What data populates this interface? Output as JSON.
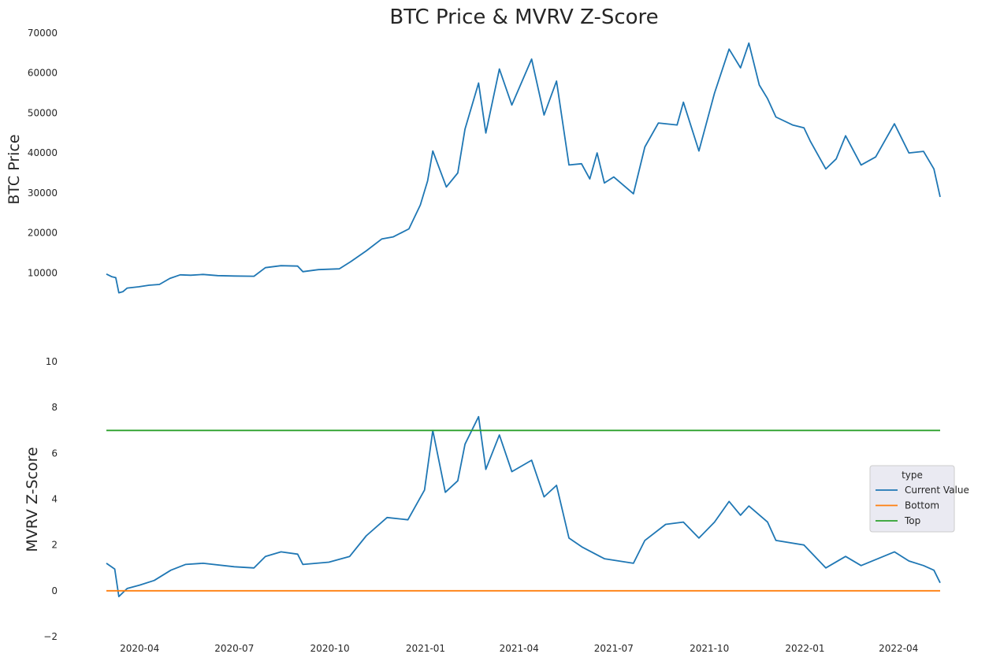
{
  "chart_data": {
    "title": "BTC Price & MVRV Z-Score",
    "panels": [
      {
        "type": "line",
        "ylabel": "BTC  Price",
        "ylim": [
          0,
          70000
        ],
        "yticks": [
          10000,
          20000,
          30000,
          40000,
          50000,
          60000,
          70000
        ],
        "grid": false,
        "series": [
          {
            "color": "#1f77b4",
            "points": [
              [
                "2020-02-29",
                9700
              ],
              [
                "2020-03-05",
                9050
              ],
              [
                "2020-03-09",
                8800
              ],
              [
                "2020-03-12",
                5000
              ],
              [
                "2020-03-16",
                5300
              ],
              [
                "2020-03-20",
                6200
              ],
              [
                "2020-03-31",
                6500
              ],
              [
                "2020-04-10",
                6900
              ],
              [
                "2020-04-20",
                7100
              ],
              [
                "2020-04-30",
                8600
              ],
              [
                "2020-05-10",
                9500
              ],
              [
                "2020-05-20",
                9400
              ],
              [
                "2020-06-01",
                9600
              ],
              [
                "2020-06-15",
                9300
              ],
              [
                "2020-07-01",
                9200
              ],
              [
                "2020-07-20",
                9150
              ],
              [
                "2020-07-31",
                11300
              ],
              [
                "2020-08-15",
                11800
              ],
              [
                "2020-08-31",
                11700
              ],
              [
                "2020-09-05",
                10300
              ],
              [
                "2020-09-20",
                10800
              ],
              [
                "2020-10-10",
                11000
              ],
              [
                "2020-10-21",
                12800
              ],
              [
                "2020-11-05",
                15500
              ],
              [
                "2020-11-20",
                18500
              ],
              [
                "2020-12-01",
                19000
              ],
              [
                "2020-12-16",
                21000
              ],
              [
                "2020-12-27",
                27000
              ],
              [
                "2021-01-03",
                33000
              ],
              [
                "2021-01-08",
                40500
              ],
              [
                "2021-01-21",
                31500
              ],
              [
                "2021-02-01",
                35000
              ],
              [
                "2021-02-08",
                46000
              ],
              [
                "2021-02-21",
                57500
              ],
              [
                "2021-02-28",
                45000
              ],
              [
                "2021-03-13",
                61000
              ],
              [
                "2021-03-25",
                52000
              ],
              [
                "2021-04-13",
                63500
              ],
              [
                "2021-04-25",
                49500
              ],
              [
                "2021-05-07",
                58000
              ],
              [
                "2021-05-19",
                37000
              ],
              [
                "2021-05-31",
                37300
              ],
              [
                "2021-06-08",
                33500
              ],
              [
                "2021-06-15",
                40000
              ],
              [
                "2021-06-22",
                32500
              ],
              [
                "2021-07-01",
                34000
              ],
              [
                "2021-07-20",
                29800
              ],
              [
                "2021-07-31",
                41500
              ],
              [
                "2021-08-13",
                47500
              ],
              [
                "2021-08-31",
                47000
              ],
              [
                "2021-09-06",
                52700
              ],
              [
                "2021-09-21",
                40500
              ],
              [
                "2021-10-06",
                55000
              ],
              [
                "2021-10-20",
                66000
              ],
              [
                "2021-10-31",
                61300
              ],
              [
                "2021-11-08",
                67500
              ],
              [
                "2021-11-18",
                57000
              ],
              [
                "2021-11-26",
                53600
              ],
              [
                "2021-12-04",
                49000
              ],
              [
                "2021-12-20",
                47000
              ],
              [
                "2021-12-31",
                46300
              ],
              [
                "2022-01-06",
                43000
              ],
              [
                "2022-01-21",
                36000
              ],
              [
                "2022-01-31",
                38500
              ],
              [
                "2022-02-09",
                44300
              ],
              [
                "2022-02-24",
                37000
              ],
              [
                "2022-03-10",
                39000
              ],
              [
                "2022-03-28",
                47300
              ],
              [
                "2022-04-11",
                40000
              ],
              [
                "2022-04-25",
                40400
              ],
              [
                "2022-05-05",
                36000
              ],
              [
                "2022-05-11",
                29000
              ]
            ]
          }
        ]
      },
      {
        "type": "line",
        "ylabel": "MVRV Z-Score",
        "ylim": [
          -2,
          10
        ],
        "yticks": [
          -2,
          0,
          2,
          4,
          6,
          8,
          10
        ],
        "grid": false,
        "series": [
          {
            "name": "Current Value",
            "color": "#1f77b4",
            "points": [
              [
                "2020-02-29",
                1.2
              ],
              [
                "2020-03-08",
                0.95
              ],
              [
                "2020-03-12",
                -0.25
              ],
              [
                "2020-03-20",
                0.1
              ],
              [
                "2020-04-01",
                0.25
              ],
              [
                "2020-04-15",
                0.45
              ],
              [
                "2020-05-01",
                0.9
              ],
              [
                "2020-05-15",
                1.15
              ],
              [
                "2020-06-01",
                1.2
              ],
              [
                "2020-07-01",
                1.05
              ],
              [
                "2020-07-20",
                1.0
              ],
              [
                "2020-07-31",
                1.5
              ],
              [
                "2020-08-15",
                1.7
              ],
              [
                "2020-08-31",
                1.6
              ],
              [
                "2020-09-05",
                1.15
              ],
              [
                "2020-09-30",
                1.25
              ],
              [
                "2020-10-20",
                1.5
              ],
              [
                "2020-11-05",
                2.4
              ],
              [
                "2020-11-25",
                3.2
              ],
              [
                "2020-12-15",
                3.1
              ],
              [
                "2020-12-31",
                4.4
              ],
              [
                "2021-01-08",
                7.0
              ],
              [
                "2021-01-20",
                4.3
              ],
              [
                "2021-02-01",
                4.8
              ],
              [
                "2021-02-08",
                6.4
              ],
              [
                "2021-02-21",
                7.6
              ],
              [
                "2021-02-28",
                5.3
              ],
              [
                "2021-03-13",
                6.8
              ],
              [
                "2021-03-25",
                5.2
              ],
              [
                "2021-04-13",
                5.7
              ],
              [
                "2021-04-25",
                4.1
              ],
              [
                "2021-05-07",
                4.6
              ],
              [
                "2021-05-19",
                2.3
              ],
              [
                "2021-06-01",
                1.9
              ],
              [
                "2021-06-22",
                1.4
              ],
              [
                "2021-07-20",
                1.2
              ],
              [
                "2021-07-31",
                2.2
              ],
              [
                "2021-08-20",
                2.9
              ],
              [
                "2021-09-06",
                3.0
              ],
              [
                "2021-09-21",
                2.3
              ],
              [
                "2021-10-06",
                3.0
              ],
              [
                "2021-10-20",
                3.9
              ],
              [
                "2021-10-31",
                3.3
              ],
              [
                "2021-11-08",
                3.7
              ],
              [
                "2021-11-26",
                3.0
              ],
              [
                "2021-12-04",
                2.2
              ],
              [
                "2021-12-31",
                2.0
              ],
              [
                "2022-01-21",
                1.0
              ],
              [
                "2022-02-09",
                1.5
              ],
              [
                "2022-02-24",
                1.1
              ],
              [
                "2022-03-28",
                1.7
              ],
              [
                "2022-04-11",
                1.3
              ],
              [
                "2022-04-25",
                1.1
              ],
              [
                "2022-05-05",
                0.9
              ],
              [
                "2022-05-11",
                0.35
              ]
            ]
          },
          {
            "name": "Bottom",
            "color": "#ff7f0e",
            "points": [
              [
                "2020-02-29",
                0
              ],
              [
                "2022-05-11",
                0
              ]
            ]
          },
          {
            "name": "Top",
            "color": "#2ca02c",
            "points": [
              [
                "2020-02-29",
                7
              ],
              [
                "2022-05-11",
                7
              ]
            ]
          }
        ],
        "legend": {
          "title": "type",
          "position": "right",
          "entries": [
            "Current Value",
            "Bottom",
            "Top"
          ]
        }
      }
    ],
    "xaxis": {
      "range": [
        "2020-02-29",
        "2022-05-11"
      ],
      "ticks": [
        "2020-04",
        "2020-07",
        "2020-10",
        "2021-01",
        "2021-04",
        "2021-07",
        "2021-10",
        "2022-01",
        "2022-04"
      ]
    }
  }
}
